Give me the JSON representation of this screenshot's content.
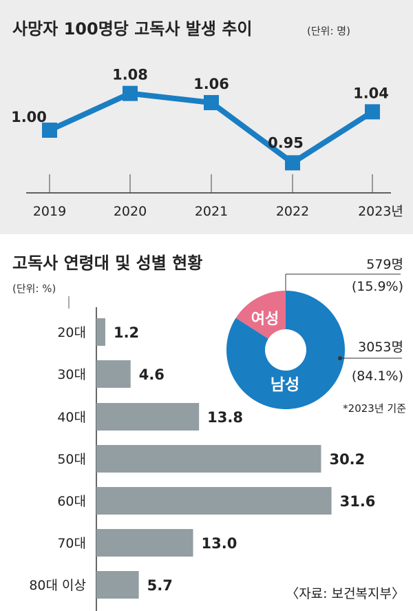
{
  "line_chart": {
    "title": "사망자 100명당 고독사 발생 추이",
    "unit": "(단위: 명)",
    "x_suffix": "년"
  },
  "bar_chart": {
    "title": "고독사 연령대 및 성별 현황",
    "unit": "(단위: %)"
  },
  "donut": {
    "female_label": "여성",
    "male_label": "남성",
    "female_count": "579명",
    "female_pct": "(15.9%)",
    "male_count": "3053명",
    "male_pct": "(84.1%)",
    "note": "*2023년 기준",
    "colors": {
      "female": "#e8708a",
      "male": "#1a7ec3"
    }
  },
  "source": "〈자료: 보건복지부〉",
  "colors": {
    "line": "#1a7ec3",
    "bar": "#939ea3",
    "panel": "#ededed"
  },
  "chart_data": [
    {
      "type": "line",
      "title": "사망자 100명당 고독사 발생 추이",
      "ylabel": "명",
      "x": [
        "2019",
        "2020",
        "2021",
        "2022",
        "2023"
      ],
      "series": [
        {
          "values": [
            1.0,
            1.08,
            1.06,
            0.95,
            1.04
          ]
        }
      ],
      "value_labels": [
        "1.00",
        "1.08",
        "1.06",
        "0.95",
        "1.04"
      ],
      "grid": false
    },
    {
      "type": "bar",
      "orientation": "horizontal",
      "title": "고독사 연령대 및 성별 현황",
      "ylabel": "%",
      "categories": [
        "20대",
        "30대",
        "40대",
        "50대",
        "60대",
        "70대",
        "80대 이상"
      ],
      "values": [
        1.2,
        4.6,
        13.8,
        30.2,
        31.6,
        13.0,
        5.7
      ],
      "value_labels": [
        "1.2",
        "4.6",
        "13.8",
        "30.2",
        "31.6",
        "13.0",
        "5.7"
      ]
    },
    {
      "type": "pie",
      "categories": [
        "여성",
        "남성"
      ],
      "values": [
        579,
        3053
      ],
      "percents": [
        15.9,
        84.1
      ]
    }
  ]
}
